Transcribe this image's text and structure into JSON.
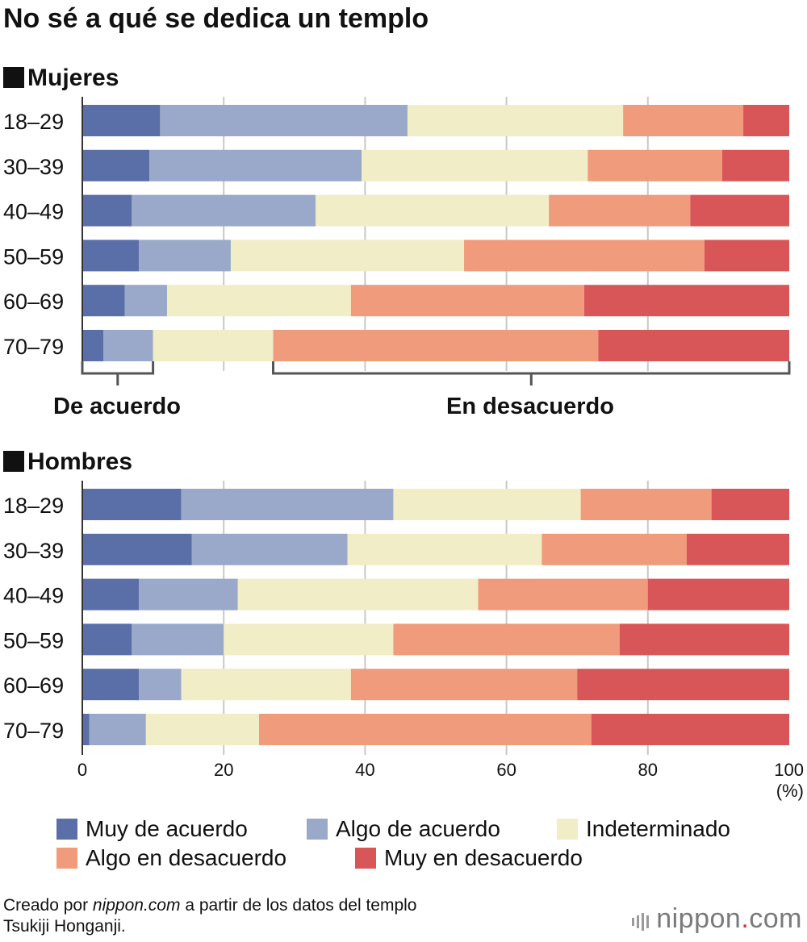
{
  "title": "No sé a qué se dedica un templo",
  "colors": {
    "muy_acuerdo": "#5a6ea8",
    "algo_acuerdo": "#9aa8ca",
    "indeterminado": "#f1edc7",
    "algo_desacuerdo": "#f09b7b",
    "muy_desacuerdo": "#d95658",
    "grid": "#c8c8c8",
    "bracket": "#555555"
  },
  "chart_data": [
    {
      "type": "bar",
      "orientation": "horizontal",
      "stacked": true,
      "title": "Mujeres",
      "categories": [
        "18–29",
        "30–39",
        "40–49",
        "50–59",
        "60–69",
        "70–79"
      ],
      "series": [
        {
          "name": "Muy de acuerdo",
          "values": [
            11,
            9.5,
            7,
            8,
            6,
            3
          ]
        },
        {
          "name": "Algo de acuerdo",
          "values": [
            35,
            30,
            26,
            13,
            6,
            7
          ]
        },
        {
          "name": "Indeterminado",
          "values": [
            30.5,
            32,
            33,
            33,
            26,
            17
          ]
        },
        {
          "name": "Algo en desacuerdo",
          "values": [
            17,
            19,
            20,
            34,
            33,
            46
          ]
        },
        {
          "name": "Muy en desacuerdo",
          "values": [
            6.5,
            9.5,
            14,
            12,
            29,
            27
          ]
        }
      ],
      "xlim": [
        0,
        100
      ],
      "annotations": [
        "De acuerdo",
        "En desacuerdo"
      ]
    },
    {
      "type": "bar",
      "orientation": "horizontal",
      "stacked": true,
      "title": "Hombres",
      "categories": [
        "18–29",
        "30–39",
        "40–49",
        "50–59",
        "60–69",
        "70–79"
      ],
      "series": [
        {
          "name": "Muy de acuerdo",
          "values": [
            14,
            15.5,
            8,
            7,
            8,
            1
          ]
        },
        {
          "name": "Algo de acuerdo",
          "values": [
            30,
            22,
            14,
            13,
            6,
            8
          ]
        },
        {
          "name": "Indeterminado",
          "values": [
            26.5,
            27.5,
            34,
            24,
            24,
            16
          ]
        },
        {
          "name": "Algo en desacuerdo",
          "values": [
            18.5,
            20.5,
            24,
            32,
            32,
            47
          ]
        },
        {
          "name": "Muy en desacuerdo",
          "values": [
            11,
            14.5,
            20,
            24,
            30,
            28
          ]
        }
      ],
      "xlim": [
        0,
        100
      ],
      "xticks": [
        "0",
        "20",
        "40",
        "60",
        "80",
        "100"
      ],
      "xunit": "(%)"
    }
  ],
  "legend": {
    "row1": [
      "Muy de acuerdo",
      "Algo de acuerdo",
      "Indeterminado"
    ],
    "row2": [
      "Algo en desacuerdo",
      "Muy en desacuerdo"
    ]
  },
  "footer": {
    "prefix": "Creado por ",
    "site": "nippon.com",
    "suffix": " a partir de los datos del templo",
    "line2": "Tsukiji Honganji."
  },
  "brand": {
    "name": "nippon",
    "dot": ".",
    "tld": "com"
  }
}
